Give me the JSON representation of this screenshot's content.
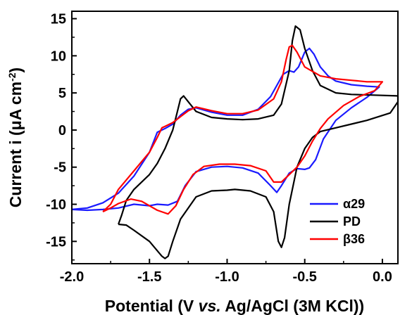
{
  "chart_data": {
    "type": "line",
    "title": "",
    "xlabel_parts": [
      "Potential (V ",
      "vs.",
      " Ag/AgCl (3M KCl))"
    ],
    "ylabel_parts": [
      "Current i (",
      "μ",
      "A cm",
      "-2",
      ")"
    ],
    "xlim": [
      -2.0,
      0.1
    ],
    "ylim": [
      -18,
      16
    ],
    "xticks": [
      -2.0,
      -1.5,
      -1.0,
      -0.5,
      0.0
    ],
    "xtick_labels": [
      "-2.0",
      "-1.5",
      "-1.0",
      "-0.5",
      "0.0"
    ],
    "yticks": [
      -15,
      -10,
      -5,
      0,
      5,
      10,
      15
    ],
    "ytick_labels": [
      "-15",
      "-10",
      "-5",
      "0",
      "5",
      "10",
      "15"
    ],
    "legend_position": "bottom-right",
    "series": [
      {
        "name": "α29",
        "color": "#1a1aff",
        "points": [
          [
            -2.0,
            -10.7
          ],
          [
            -1.9,
            -10.5
          ],
          [
            -1.8,
            -9.8
          ],
          [
            -1.7,
            -8.5
          ],
          [
            -1.6,
            -6.2
          ],
          [
            -1.5,
            -3.0
          ],
          [
            -1.45,
            -0.3
          ],
          [
            -1.4,
            0.2
          ],
          [
            -1.35,
            0.8
          ],
          [
            -1.3,
            2.0
          ],
          [
            -1.25,
            2.8
          ],
          [
            -1.2,
            3.0
          ],
          [
            -1.1,
            2.4
          ],
          [
            -1.0,
            2.0
          ],
          [
            -0.9,
            2.0
          ],
          [
            -0.8,
            2.8
          ],
          [
            -0.72,
            4.5
          ],
          [
            -0.68,
            6.0
          ],
          [
            -0.64,
            7.5
          ],
          [
            -0.6,
            8.0
          ],
          [
            -0.57,
            7.8
          ],
          [
            -0.54,
            8.5
          ],
          [
            -0.5,
            10.5
          ],
          [
            -0.47,
            11.0
          ],
          [
            -0.44,
            10.2
          ],
          [
            -0.4,
            8.5
          ],
          [
            -0.35,
            7.3
          ],
          [
            -0.3,
            6.6
          ],
          [
            -0.2,
            6.1
          ],
          [
            -0.1,
            5.9
          ],
          [
            -0.02,
            5.8
          ],
          [
            -0.1,
            4.4
          ],
          [
            -0.2,
            3.0
          ],
          [
            -0.3,
            1.3
          ],
          [
            -0.38,
            -1.2
          ],
          [
            -0.43,
            -4.0
          ],
          [
            -0.47,
            -5.1
          ],
          [
            -0.5,
            -5.3
          ],
          [
            -0.55,
            -5.2
          ],
          [
            -0.6,
            -5.8
          ],
          [
            -0.65,
            -7.5
          ],
          [
            -0.68,
            -8.4
          ],
          [
            -0.72,
            -7.5
          ],
          [
            -0.8,
            -5.8
          ],
          [
            -0.9,
            -5.1
          ],
          [
            -1.0,
            -4.9
          ],
          [
            -1.1,
            -5.0
          ],
          [
            -1.2,
            -5.6
          ],
          [
            -1.27,
            -7.5
          ],
          [
            -1.32,
            -9.6
          ],
          [
            -1.38,
            -10.1
          ],
          [
            -1.45,
            -10.0
          ],
          [
            -1.5,
            -10.2
          ],
          [
            -1.6,
            -10.0
          ],
          [
            -1.7,
            -10.5
          ],
          [
            -1.8,
            -10.7
          ],
          [
            -1.9,
            -10.8
          ],
          [
            -2.0,
            -10.7
          ]
        ]
      },
      {
        "name": "PD",
        "color": "#000000",
        "points": [
          [
            -1.7,
            -12.7
          ],
          [
            -1.68,
            -11.5
          ],
          [
            -1.65,
            -9.5
          ],
          [
            -1.6,
            -8.0
          ],
          [
            -1.5,
            -6.0
          ],
          [
            -1.45,
            -4.5
          ],
          [
            -1.4,
            -2.5
          ],
          [
            -1.35,
            0.0
          ],
          [
            -1.32,
            2.5
          ],
          [
            -1.3,
            4.2
          ],
          [
            -1.28,
            4.6
          ],
          [
            -1.25,
            3.8
          ],
          [
            -1.2,
            2.5
          ],
          [
            -1.1,
            1.7
          ],
          [
            -1.0,
            1.5
          ],
          [
            -0.9,
            1.4
          ],
          [
            -0.8,
            1.5
          ],
          [
            -0.7,
            2.0
          ],
          [
            -0.65,
            3.5
          ],
          [
            -0.6,
            8.0
          ],
          [
            -0.58,
            12.0
          ],
          [
            -0.56,
            14.0
          ],
          [
            -0.53,
            13.5
          ],
          [
            -0.5,
            11.0
          ],
          [
            -0.45,
            8.0
          ],
          [
            -0.4,
            6.0
          ],
          [
            -0.3,
            5.0
          ],
          [
            -0.2,
            4.8
          ],
          [
            -0.05,
            4.7
          ],
          [
            0.1,
            4.6
          ],
          [
            0.1,
            3.8
          ],
          [
            0.05,
            2.3
          ],
          [
            -0.1,
            1.3
          ],
          [
            -0.2,
            0.8
          ],
          [
            -0.3,
            0.3
          ],
          [
            -0.4,
            -0.2
          ],
          [
            -0.45,
            -1.0
          ],
          [
            -0.5,
            -2.5
          ],
          [
            -0.55,
            -5.0
          ],
          [
            -0.6,
            -10.0
          ],
          [
            -0.63,
            -14.5
          ],
          [
            -0.65,
            -15.8
          ],
          [
            -0.67,
            -15.0
          ],
          [
            -0.7,
            -11.0
          ],
          [
            -0.75,
            -9.0
          ],
          [
            -0.85,
            -8.2
          ],
          [
            -0.95,
            -8.0
          ],
          [
            -1.0,
            -8.1
          ],
          [
            -1.1,
            -8.2
          ],
          [
            -1.2,
            -9.0
          ],
          [
            -1.3,
            -12.0
          ],
          [
            -1.35,
            -15.0
          ],
          [
            -1.38,
            -17.0
          ],
          [
            -1.4,
            -17.3
          ],
          [
            -1.42,
            -17.0
          ],
          [
            -1.5,
            -15.0
          ],
          [
            -1.6,
            -13.5
          ],
          [
            -1.65,
            -12.8
          ],
          [
            -1.7,
            -12.7
          ]
        ]
      },
      {
        "name": "β36",
        "color": "#ff0000",
        "points": [
          [
            -1.8,
            -11.0
          ],
          [
            -1.75,
            -10.0
          ],
          [
            -1.7,
            -8.0
          ],
          [
            -1.6,
            -5.5
          ],
          [
            -1.5,
            -3.0
          ],
          [
            -1.45,
            -1.0
          ],
          [
            -1.42,
            0.3
          ],
          [
            -1.4,
            0.5
          ],
          [
            -1.35,
            1.0
          ],
          [
            -1.3,
            1.8
          ],
          [
            -1.25,
            2.6
          ],
          [
            -1.2,
            3.1
          ],
          [
            -1.1,
            2.6
          ],
          [
            -1.0,
            2.2
          ],
          [
            -0.9,
            2.2
          ],
          [
            -0.8,
            2.7
          ],
          [
            -0.7,
            4.2
          ],
          [
            -0.65,
            6.5
          ],
          [
            -0.62,
            9.5
          ],
          [
            -0.6,
            11.2
          ],
          [
            -0.58,
            11.4
          ],
          [
            -0.55,
            10.5
          ],
          [
            -0.5,
            8.5
          ],
          [
            -0.4,
            7.3
          ],
          [
            -0.3,
            6.9
          ],
          [
            -0.2,
            6.7
          ],
          [
            -0.1,
            6.5
          ],
          [
            0.0,
            6.5
          ],
          [
            -0.05,
            5.3
          ],
          [
            -0.15,
            4.5
          ],
          [
            -0.25,
            3.3
          ],
          [
            -0.35,
            1.5
          ],
          [
            -0.4,
            0.2
          ],
          [
            -0.45,
            -1.5
          ],
          [
            -0.5,
            -3.5
          ],
          [
            -0.55,
            -5.0
          ],
          [
            -0.6,
            -6.0
          ],
          [
            -0.65,
            -7.0
          ],
          [
            -0.7,
            -7.0
          ],
          [
            -0.75,
            -5.5
          ],
          [
            -0.85,
            -4.8
          ],
          [
            -0.95,
            -4.6
          ],
          [
            -1.05,
            -4.6
          ],
          [
            -1.15,
            -4.9
          ],
          [
            -1.22,
            -6.0
          ],
          [
            -1.28,
            -8.0
          ],
          [
            -1.33,
            -10.2
          ],
          [
            -1.38,
            -11.3
          ],
          [
            -1.45,
            -10.8
          ],
          [
            -1.55,
            -9.6
          ],
          [
            -1.62,
            -9.3
          ],
          [
            -1.7,
            -9.9
          ],
          [
            -1.75,
            -10.5
          ],
          [
            -1.8,
            -11.0
          ]
        ]
      }
    ]
  }
}
